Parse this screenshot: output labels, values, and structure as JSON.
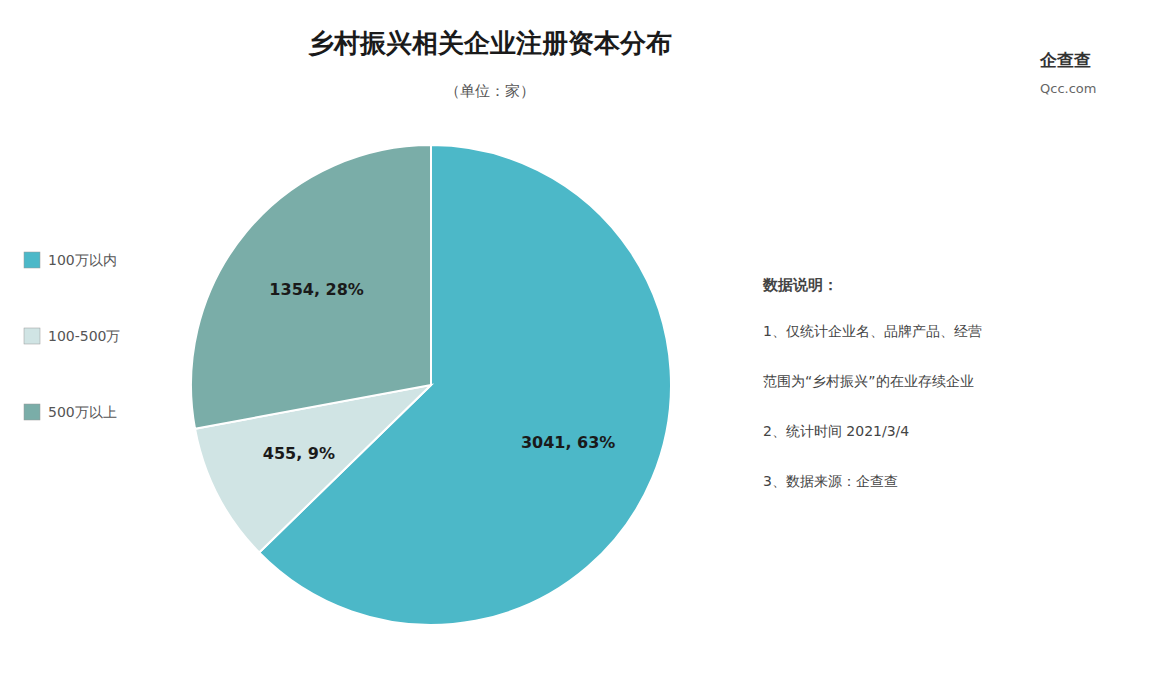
{
  "chart_data": {
    "type": "pie",
    "title": "乡村振兴相关企业注册资本分布",
    "subtitle": "（单位：家）",
    "categories": [
      "100万以内",
      "100-500万",
      "500万以上"
    ],
    "values": [
      3041,
      455,
      1354
    ],
    "value_labels": [
      "3041, 63%",
      "455, 9%",
      "1354, 28%"
    ],
    "data_labels": true,
    "colors": [
      "#4cb8c8",
      "#d0e4e4",
      "#7aada8"
    ],
    "legend": "left",
    "annotations": [
      "数据说明：",
      "1、仅统计企业名、品牌产品、经营",
      "范围为“乡村振兴”的在业存续企业",
      "2、统计时间  2021/3/4",
      "3、数据来源：企查查"
    ],
    "logo_text": [
      "企查查",
      "Qcc.com"
    ]
  }
}
